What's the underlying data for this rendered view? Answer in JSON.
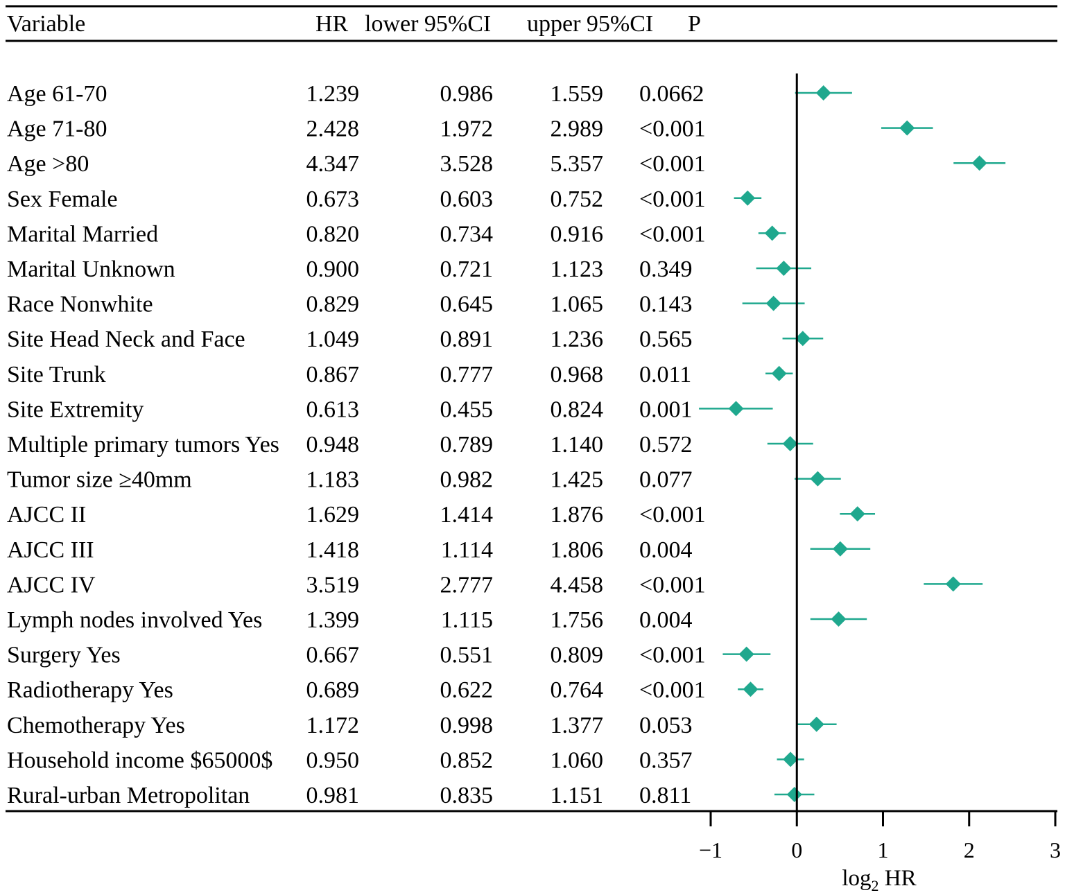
{
  "chart_data": {
    "type": "forest",
    "columns": {
      "variable": "Variable",
      "hr": "HR",
      "lower": "lower 95%CI",
      "upper": "upper 95%CI",
      "p": "P"
    },
    "rows": [
      {
        "variable": "Age 61-70",
        "hr": "1.239",
        "lower": "0.986",
        "upper": "1.559",
        "p": "0.0662"
      },
      {
        "variable": "Age 71-80",
        "hr": "2.428",
        "lower": "1.972",
        "upper": "2.989",
        "p": "<0.001"
      },
      {
        "variable": "Age >80",
        "hr": "4.347",
        "lower": "3.528",
        "upper": "5.357",
        "p": "<0.001"
      },
      {
        "variable": "Sex Female",
        "hr": "0.673",
        "lower": "0.603",
        "upper": "0.752",
        "p": "<0.001"
      },
      {
        "variable": "Marital Married",
        "hr": "0.820",
        "lower": "0.734",
        "upper": "0.916",
        "p": "<0.001"
      },
      {
        "variable": "Marital Unknown",
        "hr": "0.900",
        "lower": "0.721",
        "upper": "1.123",
        "p": "0.349"
      },
      {
        "variable": "Race Nonwhite",
        "hr": "0.829",
        "lower": "0.645",
        "upper": "1.065",
        "p": "0.143"
      },
      {
        "variable": "Site Head Neck and Face",
        "hr": "1.049",
        "lower": "0.891",
        "upper": "1.236",
        "p": "0.565"
      },
      {
        "variable": "Site Trunk",
        "hr": "0.867",
        "lower": "0.777",
        "upper": "0.968",
        "p": "0.011"
      },
      {
        "variable": "Site Extremity",
        "hr": "0.613",
        "lower": "0.455",
        "upper": "0.824",
        "p": "0.001"
      },
      {
        "variable": "Multiple primary tumors Yes",
        "hr": "0.948",
        "lower": "0.789",
        "upper": "1.140",
        "p": "0.572"
      },
      {
        "variable": "Tumor size ≥40mm",
        "hr": "1.183",
        "lower": "0.982",
        "upper": "1.425",
        "p": "0.077"
      },
      {
        "variable": "AJCC II",
        "hr": "1.629",
        "lower": "1.414",
        "upper": "1.876",
        "p": "<0.001"
      },
      {
        "variable": "AJCC III",
        "hr": "1.418",
        "lower": "1.114",
        "upper": "1.806",
        "p": "0.004"
      },
      {
        "variable": "AJCC IV",
        "hr": "3.519",
        "lower": "2.777",
        "upper": "4.458",
        "p": "<0.001"
      },
      {
        "variable": "Lymph nodes involved Yes",
        "hr": "1.399",
        "lower": "1.115",
        "upper": "1.756",
        "p": "0.004"
      },
      {
        "variable": "Surgery Yes",
        "hr": "0.667",
        "lower": "0.551",
        "upper": "0.809",
        "p": "<0.001"
      },
      {
        "variable": "Radiotherapy Yes",
        "hr": "0.689",
        "lower": "0.622",
        "upper": "0.764",
        "p": "<0.001"
      },
      {
        "variable": "Chemotherapy Yes",
        "hr": "1.172",
        "lower": "0.998",
        "upper": "1.377",
        "p": "0.053"
      },
      {
        "variable": "Household income $65000$",
        "hr": "0.950",
        "lower": "0.852",
        "upper": "1.060",
        "p": "0.357"
      },
      {
        "variable": "Rural-urban Metropolitan",
        "hr": "0.981",
        "lower": "0.835",
        "upper": "1.151",
        "p": "0.811"
      }
    ],
    "x_axis": {
      "label_base": "log",
      "label_sub": "2",
      "label_rest": " HR",
      "scale": "log2",
      "xlim": [
        -1,
        3
      ],
      "ticks": [
        -1,
        0,
        1,
        2,
        3
      ],
      "tick_labels": [
        "−1",
        "0",
        "1",
        "2",
        "3"
      ],
      "reference_line": 0
    },
    "marker_color": "#1fa88e"
  }
}
